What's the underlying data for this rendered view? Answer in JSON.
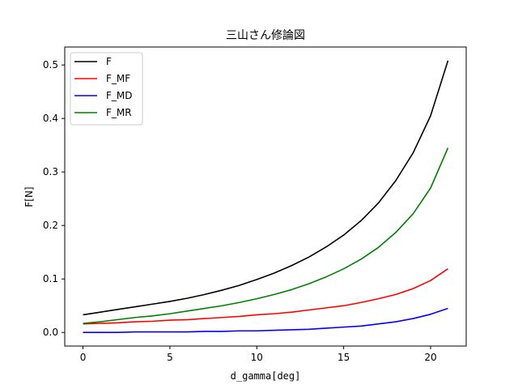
{
  "chart_data": {
    "type": "line",
    "title": "三山さん修論図",
    "xlabel": "d_gamma[deg]",
    "ylabel": "F[N]",
    "xlim": [
      -1.05,
      22.05
    ],
    "ylim": [
      -0.0254,
      0.5336
    ],
    "xticks": [
      0,
      5,
      10,
      15,
      20
    ],
    "xtick_labels": [
      "0",
      "5",
      "10",
      "15",
      "20"
    ],
    "yticks": [
      0.0,
      0.1,
      0.2,
      0.3,
      0.4,
      0.5
    ],
    "ytick_labels": [
      "0.0",
      "0.1",
      "0.2",
      "0.3",
      "0.4",
      "0.5"
    ],
    "grid": false,
    "legend_position": "upper-left",
    "x": [
      0,
      1,
      2,
      3,
      4,
      5,
      6,
      7,
      8,
      9,
      10,
      11,
      12,
      13,
      14,
      15,
      16,
      17,
      18,
      19,
      20,
      21
    ],
    "series": [
      {
        "name": "F",
        "color": "#000000",
        "values": [
          0.033,
          0.038,
          0.043,
          0.048,
          0.053,
          0.058,
          0.064,
          0.071,
          0.079,
          0.088,
          0.099,
          0.111,
          0.125,
          0.141,
          0.16,
          0.182,
          0.209,
          0.242,
          0.284,
          0.336,
          0.405,
          0.508
        ]
      },
      {
        "name": "F_MF",
        "color": "#ff0000",
        "values": [
          0.016,
          0.017,
          0.018,
          0.02,
          0.021,
          0.023,
          0.024,
          0.026,
          0.028,
          0.03,
          0.033,
          0.035,
          0.038,
          0.042,
          0.046,
          0.05,
          0.056,
          0.063,
          0.071,
          0.082,
          0.097,
          0.119
        ]
      },
      {
        "name": "F_MD",
        "color": "#0000ff",
        "values": [
          0.0,
          0.0,
          0.0,
          0.001,
          0.001,
          0.001,
          0.001,
          0.002,
          0.002,
          0.003,
          0.003,
          0.004,
          0.005,
          0.006,
          0.008,
          0.01,
          0.012,
          0.016,
          0.02,
          0.026,
          0.034,
          0.045
        ]
      },
      {
        "name": "F_MR",
        "color": "#008000",
        "values": [
          0.017,
          0.02,
          0.024,
          0.028,
          0.031,
          0.035,
          0.04,
          0.045,
          0.05,
          0.056,
          0.063,
          0.071,
          0.08,
          0.091,
          0.104,
          0.119,
          0.137,
          0.159,
          0.187,
          0.222,
          0.27,
          0.345
        ]
      }
    ]
  }
}
